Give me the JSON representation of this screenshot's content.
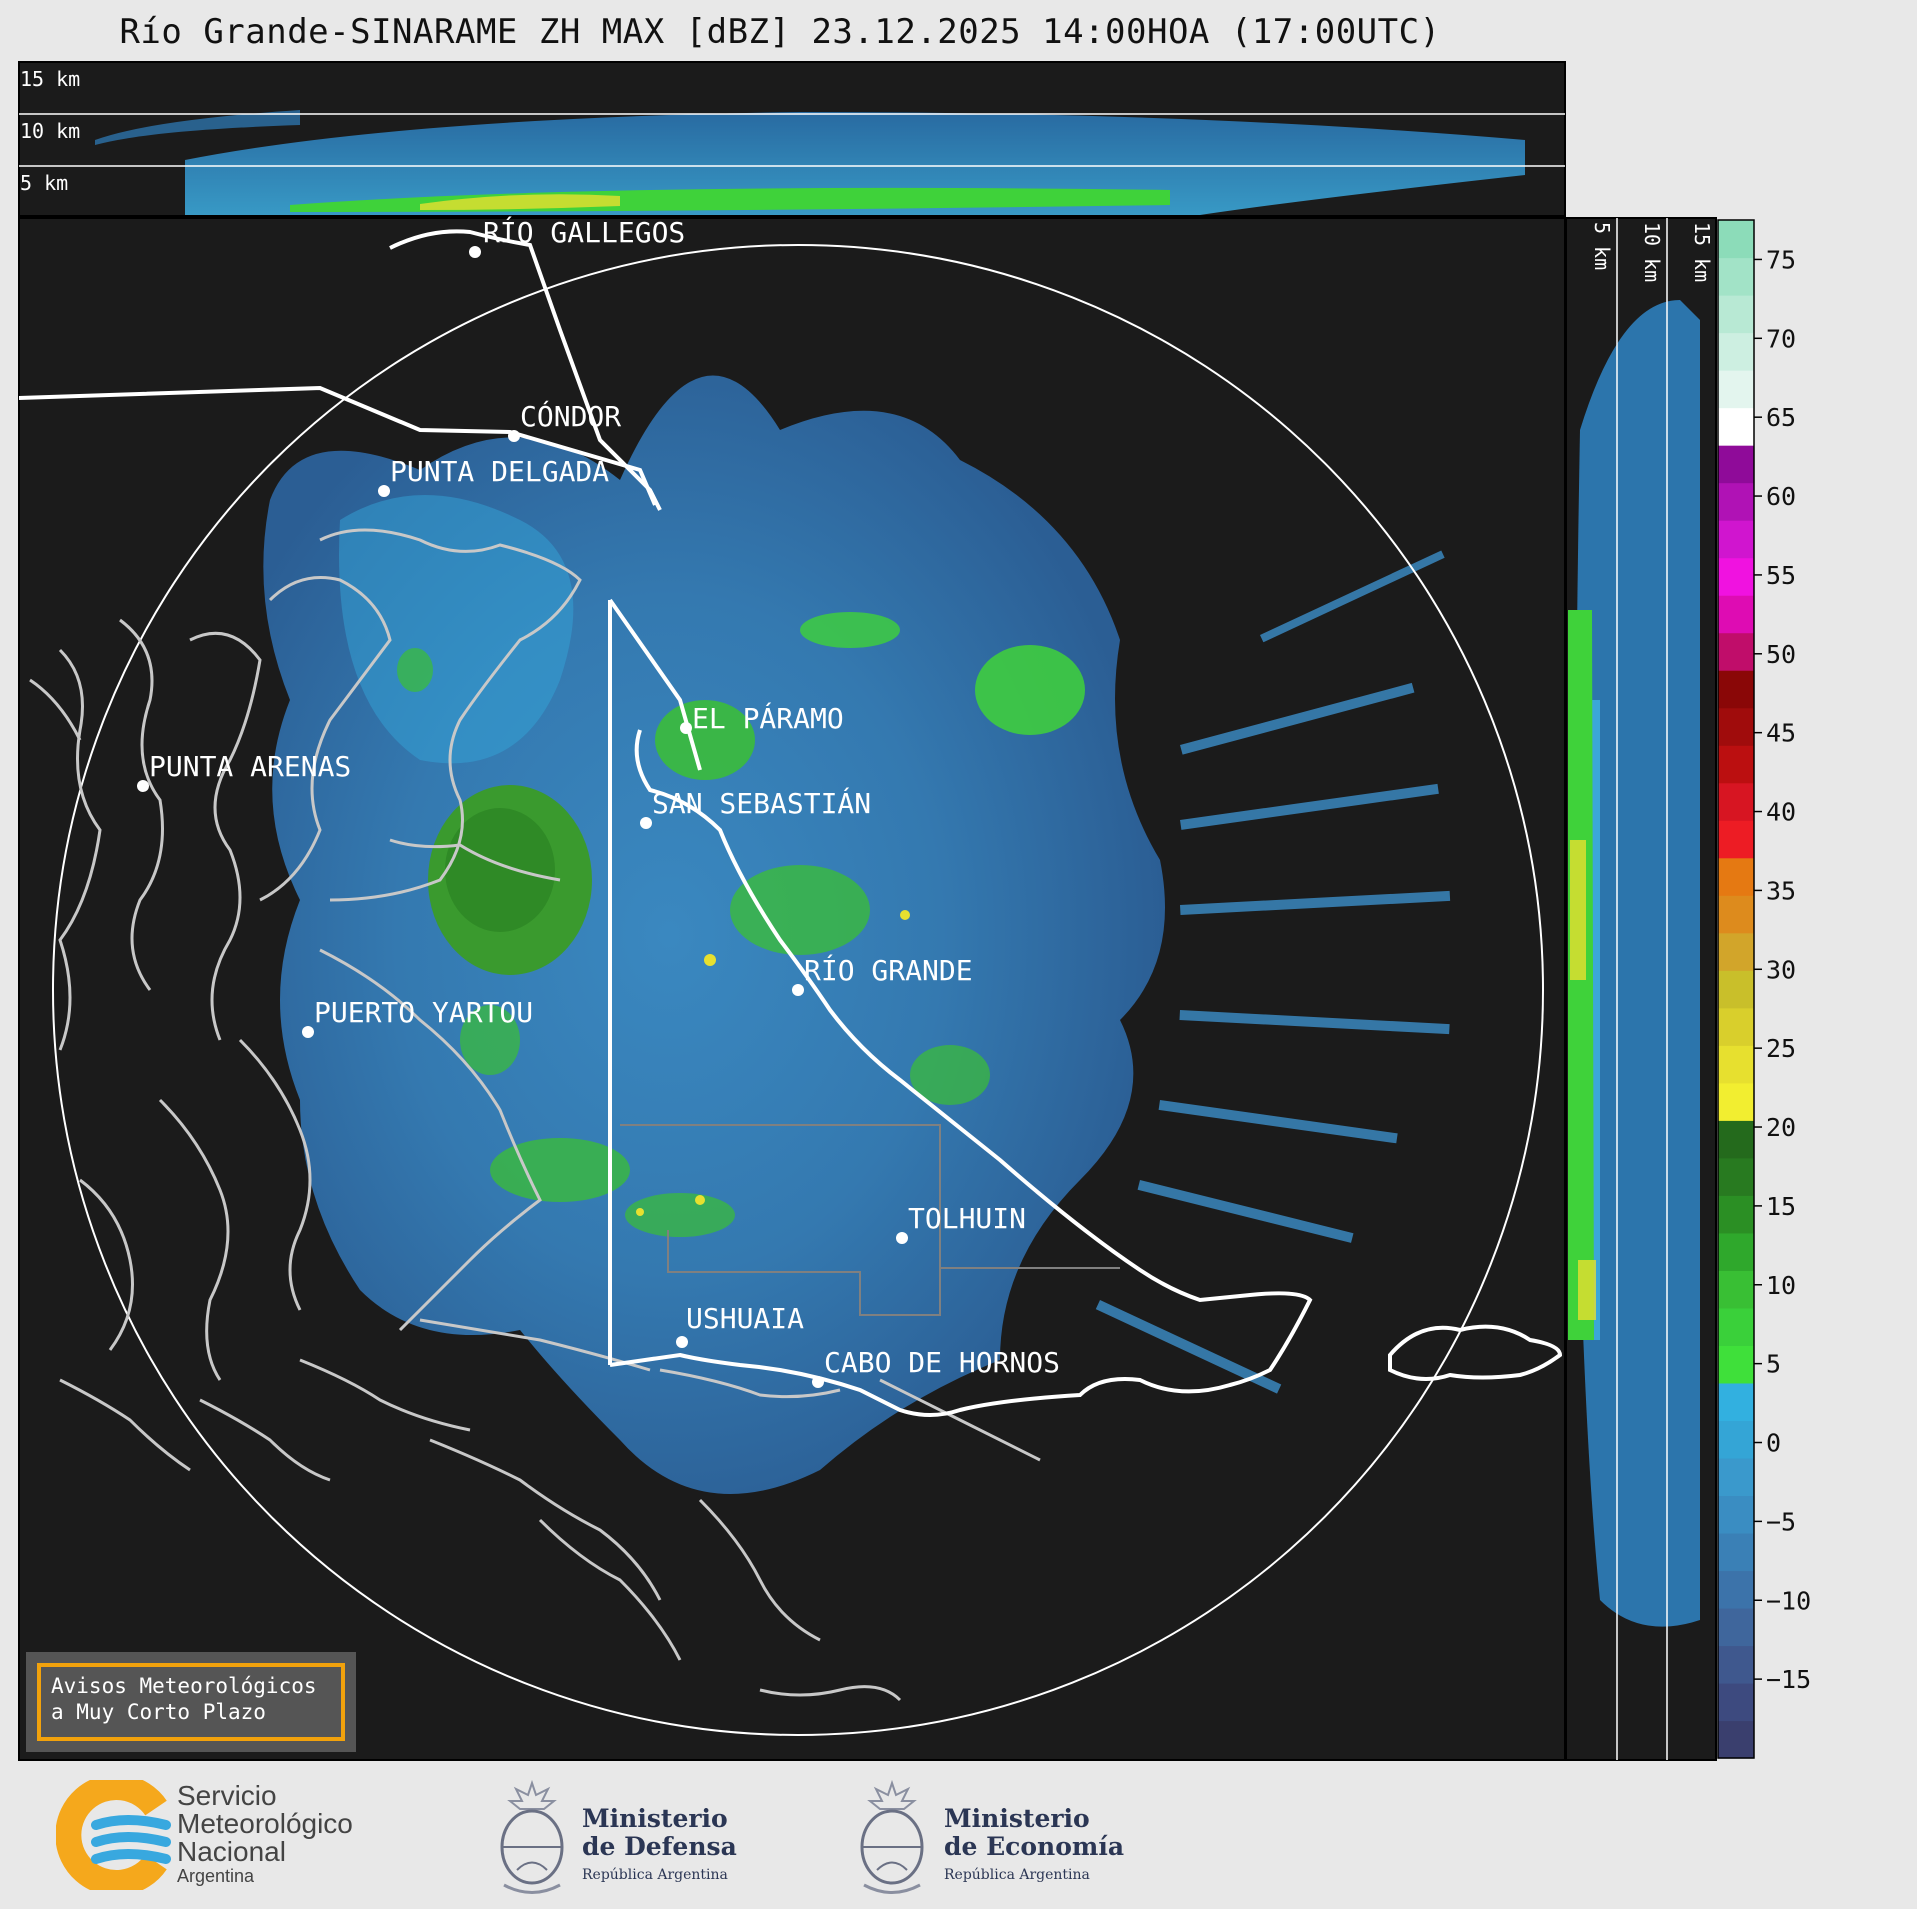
{
  "title": "Río Grande-SINARAME ZH MAX [dBZ] 23.12.2025 14:00HOA (17:00UTC)",
  "top_profile": {
    "heights": [
      "15 km",
      "10 km",
      "5 km"
    ]
  },
  "side_profile": {
    "heights": [
      "5 km",
      "10 km",
      "15 km"
    ]
  },
  "cities": [
    {
      "name": "RÍO GALLEGOS"
    },
    {
      "name": "CÓNDOR"
    },
    {
      "name": "PUNTA DELGADA"
    },
    {
      "name": "EL PÁRAMO"
    },
    {
      "name": "PUNTA ARENAS"
    },
    {
      "name": "SAN SEBASTIÁN"
    },
    {
      "name": "RÍO GRANDE"
    },
    {
      "name": "PUERTO YARTOU"
    },
    {
      "name": "TOLHUIN"
    },
    {
      "name": "USHUAIA"
    },
    {
      "name": "CABO DE HORNOS"
    }
  ],
  "colorbar": {
    "ticks": [
      "75",
      "70",
      "65",
      "60",
      "55",
      "50",
      "45",
      "40",
      "35",
      "30",
      "25",
      "20",
      "15",
      "10",
      "5",
      "0",
      "−5",
      "−10",
      "−15"
    ],
    "min": -20,
    "max": 77.5,
    "unit": "dBZ",
    "colors": [
      "#3a3f6e",
      "#3d4a7f",
      "#3f588e",
      "#3f669c",
      "#3c73aa",
      "#3a80b6",
      "#3a8dc2",
      "#3a99cc",
      "#34a5d6",
      "#32b0e0",
      "#3fe03a",
      "#3ad03a",
      "#39bf34",
      "#2fa82c",
      "#2b8f24",
      "#287a20",
      "#246a1c",
      "#f2ee30",
      "#e7e02f",
      "#d9cf2c",
      "#c9bf2a",
      "#d2a52a",
      "#dd8b1d",
      "#e57912",
      "#ed1c24",
      "#d71522",
      "#bb0f10",
      "#a00c0c",
      "#8a0707",
      "#c00d6a",
      "#de0cb3",
      "#f012e0",
      "#d015cf",
      "#b012b5",
      "#8f0b99",
      "#ffffff",
      "#e3f5ee",
      "#cdefe1",
      "#b8e9d4",
      "#a2e3c7",
      "#8cdcb9"
    ]
  },
  "warning_box": {
    "line1": "Avisos Meteorológicos",
    "line2": "a Muy Corto Plazo"
  },
  "footer": {
    "smn": {
      "line1": "Servicio",
      "line2": "Meteorológico",
      "line3": "Nacional",
      "line4": "Argentina"
    },
    "defensa": {
      "line1": "Ministerio",
      "line2": "de Defensa",
      "line3": "República Argentina"
    },
    "economia": {
      "line1": "Ministerio",
      "line2": "de Economía",
      "line3": "República Argentina"
    }
  },
  "colors": {
    "background": "#1b1b1b",
    "frame": "#e8e8e8",
    "accent": "#f2a20c"
  }
}
